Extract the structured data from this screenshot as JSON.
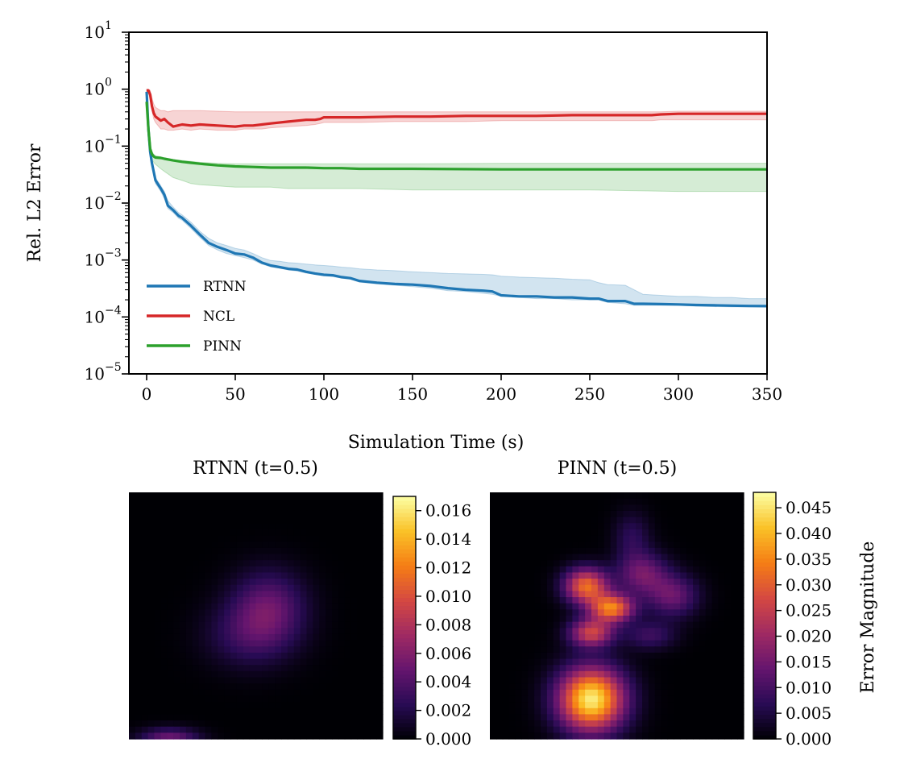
{
  "chart_data": [
    {
      "type": "line",
      "xlabel": "Simulation Time (s)",
      "ylabel": "Rel. L2 Error",
      "yscale": "log",
      "xlim": [
        -10,
        350
      ],
      "ylim": [
        1e-05,
        10
      ],
      "grid": false,
      "legend_position": "lower-left",
      "x_ticks": [
        {
          "v": 0,
          "label": "0"
        },
        {
          "v": 50,
          "label": "50"
        },
        {
          "v": 100,
          "label": "100"
        },
        {
          "v": 150,
          "label": "150"
        },
        {
          "v": 200,
          "label": "200"
        },
        {
          "v": 250,
          "label": "250"
        },
        {
          "v": 300,
          "label": "300"
        },
        {
          "v": 350,
          "label": "350"
        }
      ],
      "y_ticks": [
        {
          "exp": 1,
          "base": "10",
          "sup": "1"
        },
        {
          "exp": 0,
          "base": "10",
          "sup": "0"
        },
        {
          "exp": -1,
          "base": "10",
          "sup": "−1"
        },
        {
          "exp": -2,
          "base": "10",
          "sup": "−2"
        },
        {
          "exp": -3,
          "base": "10",
          "sup": "−3"
        },
        {
          "exp": -4,
          "base": "10",
          "sup": "−4"
        },
        {
          "exp": -5,
          "base": "10",
          "sup": "−5"
        }
      ],
      "series": [
        {
          "name": "RTNN",
          "color": "#1f77b4",
          "x": [
            0,
            1,
            2,
            3,
            5,
            8,
            10,
            12,
            15,
            18,
            20,
            25,
            30,
            35,
            40,
            45,
            50,
            55,
            60,
            65,
            70,
            75,
            80,
            85,
            90,
            95,
            100,
            105,
            110,
            115,
            120,
            130,
            140,
            150,
            160,
            170,
            180,
            190,
            195,
            200,
            210,
            220,
            230,
            240,
            250,
            255,
            260,
            270,
            275,
            280,
            290,
            300,
            310,
            320,
            330,
            340,
            350
          ],
          "y": [
            0.9,
            0.2,
            0.08,
            0.05,
            0.025,
            0.018,
            0.014,
            0.009,
            0.0075,
            0.006,
            0.0055,
            0.004,
            0.0028,
            0.002,
            0.0017,
            0.0015,
            0.0013,
            0.00125,
            0.0011,
            0.0009,
            0.0008,
            0.00075,
            0.0007,
            0.00068,
            0.00062,
            0.00058,
            0.00055,
            0.00054,
            0.0005,
            0.00048,
            0.00043,
            0.0004,
            0.00038,
            0.00037,
            0.00035,
            0.00032,
            0.0003,
            0.00029,
            0.00028,
            0.00024,
            0.00023,
            0.00023,
            0.00022,
            0.00022,
            0.00021,
            0.00021,
            0.00019,
            0.00019,
            0.00017,
            0.00017,
            0.000168,
            0.000166,
            0.000162,
            0.00016,
            0.000158,
            0.000156,
            0.000155
          ],
          "band_low": [
            0.8,
            0.18,
            0.07,
            0.045,
            0.022,
            0.016,
            0.012,
            0.008,
            0.0068,
            0.0054,
            0.005,
            0.0036,
            0.0025,
            0.0018,
            0.0015,
            0.0013,
            0.0012,
            0.0011,
            0.001,
            0.00085,
            0.00076,
            0.00072,
            0.00067,
            0.00064,
            0.00059,
            0.00056,
            0.00053,
            0.00051,
            0.00048,
            0.00046,
            0.00041,
            0.00038,
            0.00036,
            0.00034,
            0.00032,
            0.00029,
            0.00028,
            0.00026,
            0.00025,
            0.00023,
            0.00022,
            0.00021,
            0.00021,
            0.0002,
            0.0002,
            0.0002,
            0.00018,
            0.00017,
            0.00016,
            0.00016,
            0.00016,
            0.00016,
            0.000155,
            0.000152,
            0.00015,
            0.00015,
            0.00015
          ],
          "band_high": [
            1.0,
            0.22,
            0.09,
            0.055,
            0.028,
            0.02,
            0.016,
            0.011,
            0.0085,
            0.0068,
            0.0062,
            0.0046,
            0.0032,
            0.0024,
            0.002,
            0.0018,
            0.0016,
            0.0015,
            0.0013,
            0.0011,
            0.00098,
            0.00095,
            0.0009,
            0.00088,
            0.00085,
            0.00082,
            0.0008,
            0.00078,
            0.00075,
            0.00073,
            0.0007,
            0.00067,
            0.00065,
            0.00062,
            0.0006,
            0.00058,
            0.00057,
            0.00056,
            0.00055,
            0.00052,
            0.0005,
            0.00049,
            0.00048,
            0.00046,
            0.00045,
            0.0004,
            0.00037,
            0.00036,
            0.0003,
            0.00025,
            0.00024,
            0.00023,
            0.00023,
            0.00022,
            0.00022,
            0.00021,
            0.00021
          ]
        },
        {
          "name": "NCL",
          "color": "#d62728",
          "x": [
            0,
            1,
            2,
            3,
            4,
            5,
            8,
            10,
            12,
            15,
            20,
            25,
            30,
            40,
            50,
            55,
            60,
            65,
            70,
            80,
            90,
            95,
            98,
            100,
            110,
            120,
            140,
            160,
            180,
            200,
            220,
            240,
            260,
            280,
            285,
            290,
            300,
            320,
            340,
            350
          ],
          "y": [
            0.95,
            0.95,
            0.8,
            0.5,
            0.38,
            0.33,
            0.28,
            0.3,
            0.26,
            0.22,
            0.24,
            0.23,
            0.24,
            0.23,
            0.22,
            0.23,
            0.23,
            0.24,
            0.25,
            0.27,
            0.29,
            0.29,
            0.3,
            0.32,
            0.32,
            0.32,
            0.33,
            0.33,
            0.34,
            0.34,
            0.34,
            0.35,
            0.35,
            0.35,
            0.35,
            0.36,
            0.37,
            0.37,
            0.37,
            0.37
          ],
          "band_low": [
            0.85,
            0.85,
            0.7,
            0.42,
            0.3,
            0.26,
            0.2,
            0.2,
            0.19,
            0.19,
            0.2,
            0.19,
            0.2,
            0.19,
            0.19,
            0.2,
            0.2,
            0.2,
            0.21,
            0.22,
            0.23,
            0.24,
            0.25,
            0.26,
            0.26,
            0.26,
            0.27,
            0.27,
            0.27,
            0.28,
            0.28,
            0.28,
            0.28,
            0.28,
            0.28,
            0.29,
            0.29,
            0.29,
            0.29,
            0.29
          ],
          "band_high": [
            1.0,
            1.0,
            0.95,
            0.7,
            0.55,
            0.48,
            0.42,
            0.42,
            0.4,
            0.42,
            0.42,
            0.42,
            0.42,
            0.41,
            0.4,
            0.4,
            0.4,
            0.4,
            0.4,
            0.4,
            0.4,
            0.4,
            0.4,
            0.4,
            0.4,
            0.4,
            0.4,
            0.4,
            0.4,
            0.4,
            0.4,
            0.4,
            0.4,
            0.4,
            0.4,
            0.4,
            0.41,
            0.41,
            0.41,
            0.41
          ]
        },
        {
          "name": "PINN",
          "color": "#2ca02c",
          "x": [
            0,
            1,
            2,
            3,
            4,
            5,
            8,
            10,
            15,
            20,
            25,
            30,
            40,
            50,
            60,
            70,
            80,
            90,
            100,
            110,
            120,
            150,
            200,
            250,
            300,
            350
          ],
          "y": [
            0.6,
            0.2,
            0.09,
            0.072,
            0.066,
            0.063,
            0.062,
            0.06,
            0.056,
            0.053,
            0.051,
            0.049,
            0.046,
            0.044,
            0.043,
            0.042,
            0.042,
            0.042,
            0.041,
            0.041,
            0.04,
            0.04,
            0.039,
            0.039,
            0.039,
            0.039
          ],
          "band_low": [
            0.5,
            0.15,
            0.07,
            0.058,
            0.052,
            0.048,
            0.04,
            0.036,
            0.028,
            0.025,
            0.022,
            0.021,
            0.02,
            0.019,
            0.019,
            0.019,
            0.018,
            0.018,
            0.018,
            0.018,
            0.018,
            0.017,
            0.017,
            0.017,
            0.016,
            0.016
          ],
          "band_high": [
            0.7,
            0.25,
            0.1,
            0.08,
            0.072,
            0.068,
            0.065,
            0.062,
            0.058,
            0.056,
            0.054,
            0.052,
            0.05,
            0.049,
            0.049,
            0.049,
            0.049,
            0.049,
            0.049,
            0.049,
            0.049,
            0.049,
            0.05,
            0.05,
            0.05,
            0.05
          ]
        }
      ]
    },
    {
      "type": "heatmap",
      "title": "RTNN (t=0.5)",
      "colormap": "inferno",
      "vmin": 0,
      "vmax": 0.017,
      "colorbar_ticks": [
        "0.000",
        "0.002",
        "0.004",
        "0.006",
        "0.008",
        "0.010",
        "0.012",
        "0.014",
        "0.016"
      ],
      "colorbar_values": [
        0,
        0.002,
        0.004,
        0.006,
        0.008,
        0.01,
        0.012,
        0.014,
        0.016
      ],
      "hotspots": [
        {
          "cx": 0.55,
          "cy": 0.46,
          "sx": 0.1,
          "sy": 0.1,
          "value": 0.0045
        },
        {
          "cx": 0.48,
          "cy": 0.58,
          "sx": 0.12,
          "sy": 0.09,
          "value": 0.003
        },
        {
          "cx": 0.16,
          "cy": 1.0,
          "sx": 0.08,
          "sy": 0.03,
          "value": 0.0052
        }
      ]
    },
    {
      "type": "heatmap",
      "title": "PINN (t=0.5)",
      "colormap": "inferno",
      "vmin": 0,
      "vmax": 0.048,
      "colorbar_label": "Error Magnitude",
      "colorbar_ticks": [
        "0.000",
        "0.005",
        "0.010",
        "0.015",
        "0.020",
        "0.025",
        "0.030",
        "0.035",
        "0.040",
        "0.045"
      ],
      "colorbar_values": [
        0,
        0.005,
        0.01,
        0.015,
        0.02,
        0.025,
        0.03,
        0.035,
        0.04,
        0.045
      ],
      "hotspots": [
        {
          "cx": 0.4,
          "cy": 0.84,
          "sx": 0.09,
          "sy": 0.09,
          "value": 0.046
        },
        {
          "cx": 0.38,
          "cy": 0.38,
          "sx": 0.06,
          "sy": 0.05,
          "value": 0.032
        },
        {
          "cx": 0.48,
          "cy": 0.47,
          "sx": 0.06,
          "sy": 0.04,
          "value": 0.034
        },
        {
          "cx": 0.4,
          "cy": 0.57,
          "sx": 0.06,
          "sy": 0.04,
          "value": 0.026
        },
        {
          "cx": 0.6,
          "cy": 0.33,
          "sx": 0.07,
          "sy": 0.06,
          "value": 0.015
        },
        {
          "cx": 0.72,
          "cy": 0.42,
          "sx": 0.07,
          "sy": 0.06,
          "value": 0.014
        },
        {
          "cx": 0.56,
          "cy": 0.18,
          "sx": 0.05,
          "sy": 0.07,
          "value": 0.007
        },
        {
          "cx": 0.63,
          "cy": 0.58,
          "sx": 0.07,
          "sy": 0.04,
          "value": 0.009
        }
      ]
    }
  ]
}
